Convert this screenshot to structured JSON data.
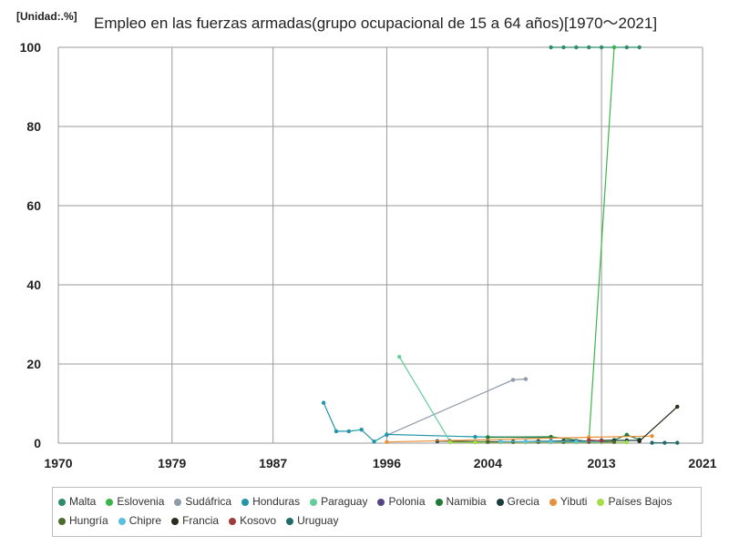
{
  "chart_data": {
    "type": "line",
    "unit_label": "[Unidad:.%]",
    "title": "Empleo en las fuerzas armadas(grupo ocupacional de 15 a 64 años)[1970～2021]",
    "xlabel": "",
    "ylabel": "",
    "xlim": [
      1970,
      2021
    ],
    "ylim": [
      0,
      100
    ],
    "x_ticks": [
      1970,
      1979,
      1987,
      1996,
      2004,
      2013,
      2021
    ],
    "y_ticks": [
      0,
      20,
      40,
      60,
      80,
      100
    ],
    "grid": true,
    "legend_position": "bottom",
    "series": [
      {
        "name": "Malta",
        "color": "#2e8b6e",
        "points": [
          [
            2009,
            100
          ],
          [
            2010,
            100
          ],
          [
            2011,
            100
          ],
          [
            2012,
            100
          ],
          [
            2013,
            100
          ],
          [
            2014,
            100
          ],
          [
            2015,
            100
          ],
          [
            2016,
            100
          ]
        ]
      },
      {
        "name": "Eslovenia",
        "color": "#3cb44b",
        "points": [
          [
            2012,
            0.5
          ],
          [
            2014,
            100
          ]
        ]
      },
      {
        "name": "Sudáfrica",
        "color": "#8e9aa8",
        "points": [
          [
            1996,
            2.0
          ],
          [
            2006,
            16.0
          ],
          [
            2007,
            16.2
          ]
        ]
      },
      {
        "name": "Honduras",
        "color": "#2196a8",
        "points": [
          [
            1991,
            10.2
          ],
          [
            1992,
            3.0
          ],
          [
            1993,
            3.0
          ],
          [
            1994,
            3.4
          ],
          [
            1995,
            0.4
          ],
          [
            1996,
            2.2
          ],
          [
            2003,
            1.6
          ],
          [
            2009,
            1.4
          ]
        ]
      },
      {
        "name": "Paraguay",
        "color": "#66cc99",
        "points": [
          [
            1997,
            21.8
          ],
          [
            2001,
            0.5
          ]
        ]
      },
      {
        "name": "Polonia",
        "color": "#554488",
        "points": [
          [
            2005,
            0.4
          ],
          [
            2007,
            0.3
          ],
          [
            2009,
            0.3
          ],
          [
            2011,
            0.3
          ]
        ]
      },
      {
        "name": "Namibia",
        "color": "#1e7b34",
        "points": [
          [
            2004,
            1.5
          ],
          [
            2009,
            1.6
          ],
          [
            2012,
            0.4
          ],
          [
            2014,
            0.8
          ],
          [
            2015,
            2.1
          ],
          [
            2016,
            0.9
          ]
        ]
      },
      {
        "name": "Grecia",
        "color": "#1c3b3e",
        "points": [
          [
            2000,
            0.5
          ],
          [
            2001,
            0.5
          ],
          [
            2003,
            0.4
          ],
          [
            2004,
            0.4
          ],
          [
            2005,
            0.4
          ],
          [
            2006,
            0.4
          ],
          [
            2007,
            0.4
          ],
          [
            2008,
            0.5
          ],
          [
            2009,
            0.5
          ],
          [
            2010,
            0.6
          ],
          [
            2011,
            0.6
          ],
          [
            2012,
            0.5
          ],
          [
            2013,
            0.7
          ],
          [
            2014,
            0.7
          ],
          [
            2015,
            0.7
          ],
          [
            2016,
            0.7
          ]
        ]
      },
      {
        "name": "Yibuti",
        "color": "#e8913a",
        "points": [
          [
            1996,
            0.3
          ],
          [
            2012,
            1.5
          ],
          [
            2017,
            1.8
          ]
        ]
      },
      {
        "name": "Países Bajos",
        "color": "#a3e048",
        "points": [
          [
            2001,
            0.2
          ],
          [
            2003,
            0.2
          ],
          [
            2005,
            0.2
          ],
          [
            2007,
            0.2
          ],
          [
            2009,
            0.2
          ],
          [
            2011,
            0.2
          ],
          [
            2013,
            0.2
          ],
          [
            2015,
            0.2
          ]
        ]
      },
      {
        "name": "Hungría",
        "color": "#4d6b2f",
        "points": [
          [
            2004,
            0.3
          ],
          [
            2006,
            0.3
          ],
          [
            2008,
            0.3
          ],
          [
            2010,
            0.3
          ],
          [
            2012,
            0.3
          ],
          [
            2014,
            0.3
          ]
        ]
      },
      {
        "name": "Chipre",
        "color": "#5bbfe0",
        "points": [
          [
            2005,
            0.4
          ],
          [
            2007,
            0.4
          ],
          [
            2009,
            0.4
          ],
          [
            2011,
            0.4
          ],
          [
            2013,
            0.4
          ]
        ]
      },
      {
        "name": "Francia",
        "color": "#2b2b1e",
        "points": [
          [
            2016,
            0.5
          ],
          [
            2019,
            9.2
          ]
        ]
      },
      {
        "name": "Kosovo",
        "color": "#a33a3a",
        "points": [
          [
            2012,
            0.8
          ],
          [
            2013,
            0.6
          ]
        ]
      },
      {
        "name": "Uruguay",
        "color": "#236b6b",
        "points": [
          [
            2017,
            0.1
          ],
          [
            2018,
            0.1
          ],
          [
            2019,
            0.1
          ]
        ]
      }
    ]
  }
}
